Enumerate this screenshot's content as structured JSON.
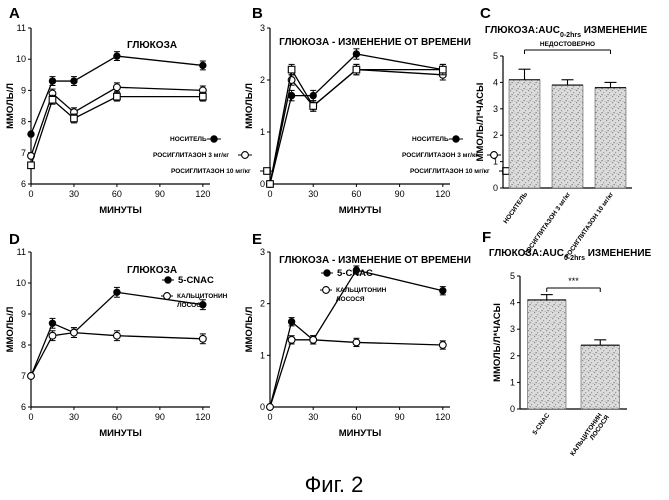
{
  "caption": "Фиг. 2",
  "chart_data": [
    {
      "panel": "A",
      "type": "line",
      "title": "ГЛЮКОЗА",
      "xlabel": "МИНУТЫ",
      "ylabel": "ММОЛЬ/Л",
      "xlim": [
        0,
        125
      ],
      "ylim": [
        6,
        11
      ],
      "xticks": [
        "0",
        "30",
        "60",
        "90",
        "120"
      ],
      "yticks": [
        "6",
        "7",
        "8",
        "9",
        "10",
        "11"
      ],
      "x": [
        0,
        15,
        30,
        60,
        120
      ],
      "legend_position": "bottom-right",
      "series": [
        {
          "name": "НОСИТЕЛЬ",
          "marker": "filled-circle",
          "values": [
            7.6,
            9.3,
            9.3,
            10.1,
            9.8
          ]
        },
        {
          "name": "РОСИГЛИТАЗОН 3 мг/кг",
          "marker": "open-circle",
          "values": [
            6.9,
            8.9,
            8.3,
            9.1,
            9.0
          ]
        },
        {
          "name": "РОСИГЛИТАЗОН 10 мг/кг",
          "marker": "open-square",
          "values": [
            6.6,
            8.7,
            8.1,
            8.8,
            8.8
          ]
        }
      ]
    },
    {
      "panel": "B",
      "type": "line",
      "title": "ГЛЮКОЗА - ИЗМЕНЕНИЕ ОТ ВРЕМЕНИ",
      "xlabel": "МИНУТЫ",
      "ylabel": "ММОЛЬ/Л",
      "xlim": [
        0,
        125
      ],
      "ylim": [
        0,
        3
      ],
      "xticks": [
        "0",
        "30",
        "60",
        "90",
        "120"
      ],
      "yticks": [
        "0",
        "1",
        "2",
        "3"
      ],
      "x": [
        0,
        15,
        30,
        60,
        120
      ],
      "legend_position": "bottom-right",
      "series": [
        {
          "name": "НОСИТЕЛЬ",
          "marker": "filled-circle",
          "values": [
            0,
            1.7,
            1.7,
            2.5,
            2.2
          ]
        },
        {
          "name": "РОСИГЛИТАЗОН 3 мг/кг",
          "marker": "open-circle",
          "values": [
            0,
            2.0,
            1.5,
            2.2,
            2.1
          ]
        },
        {
          "name": "РОСИГЛИТАЗОН 10 мг/кг",
          "marker": "open-square",
          "values": [
            0,
            2.2,
            1.5,
            2.2,
            2.2
          ]
        }
      ]
    },
    {
      "panel": "C",
      "type": "bar",
      "title_main": "ГЛЮКОЗА:AUC",
      "title_sub": "0-2hrs",
      "title_suffix": " ИЗМЕНЕНИЕ",
      "ylabel": "ММОЛЬ/Л*ЧАСЫ",
      "ylim": [
        0,
        5
      ],
      "yticks": [
        "0",
        "1",
        "2",
        "3",
        "4",
        "5"
      ],
      "categories": [
        "НОСИТЕЛЬ",
        "РОСИГЛИТАЗОН 3 мг/кг",
        "РОСИГЛИТАЗОН 10 мг/кг"
      ],
      "values": [
        4.1,
        3.9,
        3.8
      ],
      "errors": [
        0.4,
        0.2,
        0.2
      ],
      "annotation": "НЕДОСТОВЕРНО"
    },
    {
      "panel": "D",
      "type": "line",
      "title": "ГЛЮКОЗА",
      "xlabel": "МИНУТЫ",
      "ylabel": "ММОЛЬ/Л",
      "xlim": [
        0,
        125
      ],
      "ylim": [
        6,
        11
      ],
      "xticks": [
        "0",
        "30",
        "60",
        "90",
        "120"
      ],
      "yticks": [
        "6",
        "7",
        "8",
        "9",
        "10",
        "11"
      ],
      "x": [
        0,
        15,
        30,
        60,
        120
      ],
      "legend_position": "top-right",
      "series": [
        {
          "name": "5-CNAC",
          "marker": "filled-circle",
          "values": [
            7.0,
            8.7,
            8.4,
            9.7,
            9.3
          ]
        },
        {
          "name": "КАЛЬЦИТОНИН ЛОСОСЯ",
          "marker": "open-circle",
          "values": [
            7.0,
            8.3,
            8.4,
            8.3,
            8.2
          ]
        }
      ]
    },
    {
      "panel": "E",
      "type": "line",
      "title": "ГЛЮКОЗА - ИЗМЕНЕНИЕ ОТ ВРЕМЕНИ",
      "xlabel": "МИНУТЫ",
      "ylabel": "ММОЛЬ/Л",
      "xlim": [
        0,
        125
      ],
      "ylim": [
        0,
        3
      ],
      "xticks": [
        "0",
        "30",
        "60",
        "90",
        "120"
      ],
      "yticks": [
        "0",
        "1",
        "2",
        "3"
      ],
      "x": [
        0,
        15,
        30,
        60,
        120
      ],
      "legend_position": "top-right",
      "series": [
        {
          "name": "5-CNAC",
          "marker": "filled-circle",
          "values": [
            0,
            1.65,
            1.3,
            2.65,
            2.25
          ]
        },
        {
          "name": "КАЛЬЦИТОНИН ЛОСОСЯ",
          "marker": "open-circle",
          "values": [
            0,
            1.3,
            1.3,
            1.25,
            1.2
          ]
        }
      ]
    },
    {
      "panel": "F",
      "type": "bar",
      "title_main": "ГЛЮКОЗА:AUC",
      "title_sub": "0-2hrs",
      "title_suffix": " ИЗМЕНЕНИЕ",
      "ylabel": "ММОЛЬ/Л*ЧАСЫ",
      "ylim": [
        0,
        5
      ],
      "yticks": [
        "0",
        "1",
        "2",
        "3",
        "4",
        "5"
      ],
      "categories": [
        "5-CNAC",
        "КАЛЬЦИТОНИН ЛОСОСЯ"
      ],
      "values": [
        4.1,
        2.4
      ],
      "errors": [
        0.2,
        0.2
      ],
      "annotation": "***"
    }
  ]
}
